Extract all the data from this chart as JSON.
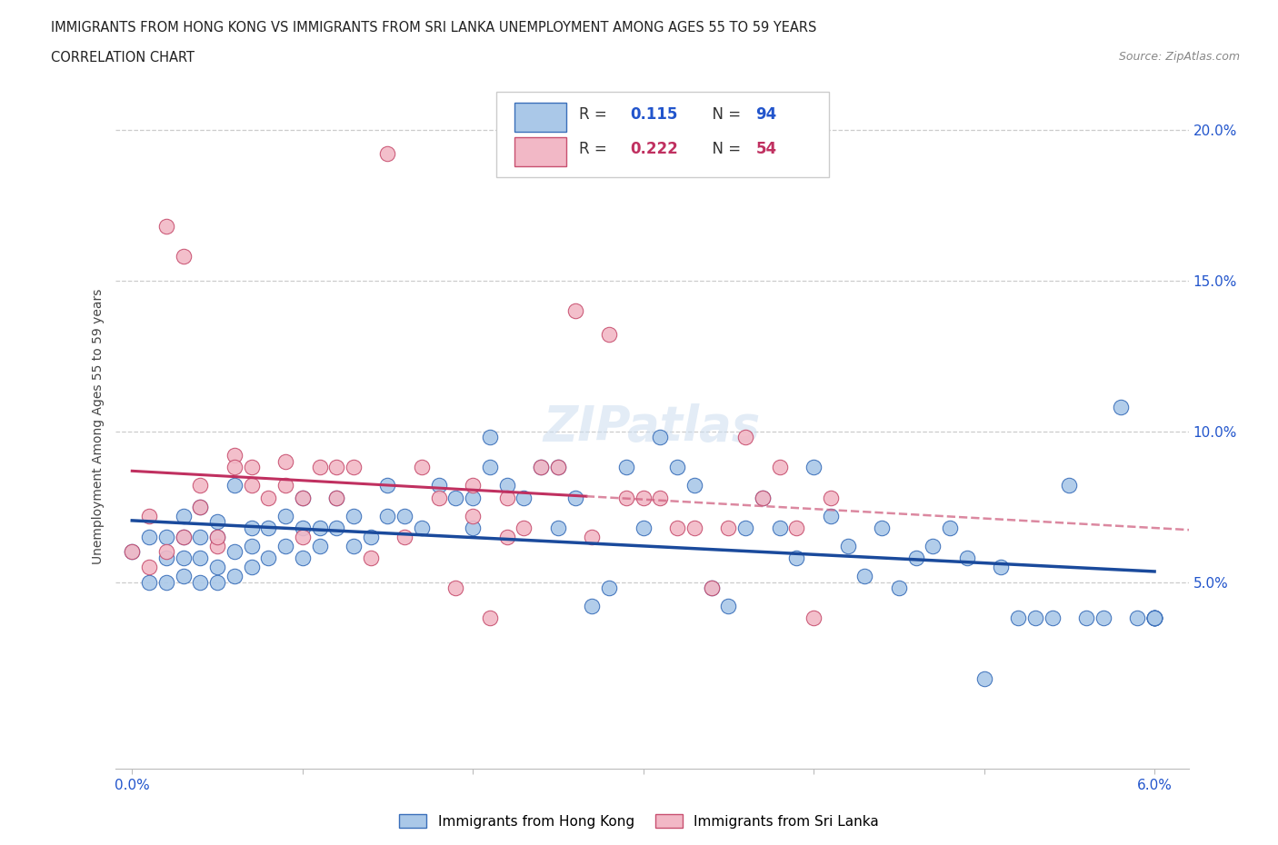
{
  "title_line1": "IMMIGRANTS FROM HONG KONG VS IMMIGRANTS FROM SRI LANKA UNEMPLOYMENT AMONG AGES 55 TO 59 YEARS",
  "title_line2": "CORRELATION CHART",
  "source_text": "Source: ZipAtlas.com",
  "ylabel_label": "Unemployment Among Ages 55 to 59 years",
  "xlim": [
    0.0,
    0.062
  ],
  "ylim": [
    -0.012,
    0.215
  ],
  "hk_R": 0.115,
  "hk_N": 94,
  "sl_R": 0.222,
  "sl_N": 54,
  "hk_color": "#aac8e8",
  "hk_edge_color": "#3a6fba",
  "hk_line_color": "#1a4a9c",
  "sl_color": "#f2b8c6",
  "sl_edge_color": "#c85070",
  "sl_line_color": "#c03060",
  "sl_dash_color": "#d06080",
  "grid_color": "#cccccc",
  "tick_color": "#2255cc",
  "title_color": "#222222",
  "hk_scatter_x": [
    0.0,
    0.001,
    0.001,
    0.002,
    0.002,
    0.002,
    0.003,
    0.003,
    0.003,
    0.003,
    0.004,
    0.004,
    0.004,
    0.004,
    0.005,
    0.005,
    0.005,
    0.005,
    0.006,
    0.006,
    0.006,
    0.007,
    0.007,
    0.007,
    0.008,
    0.008,
    0.009,
    0.009,
    0.01,
    0.01,
    0.01,
    0.011,
    0.011,
    0.012,
    0.012,
    0.013,
    0.013,
    0.014,
    0.015,
    0.015,
    0.016,
    0.017,
    0.018,
    0.019,
    0.02,
    0.02,
    0.021,
    0.021,
    0.022,
    0.023,
    0.024,
    0.025,
    0.025,
    0.026,
    0.027,
    0.028,
    0.029,
    0.03,
    0.031,
    0.032,
    0.033,
    0.034,
    0.035,
    0.036,
    0.037,
    0.038,
    0.039,
    0.04,
    0.041,
    0.042,
    0.043,
    0.044,
    0.045,
    0.046,
    0.047,
    0.048,
    0.049,
    0.05,
    0.051,
    0.052,
    0.053,
    0.054,
    0.055,
    0.056,
    0.057,
    0.058,
    0.059,
    0.06,
    0.06,
    0.06,
    0.06,
    0.06,
    0.06,
    0.06
  ],
  "hk_scatter_y": [
    0.06,
    0.05,
    0.065,
    0.05,
    0.058,
    0.065,
    0.052,
    0.058,
    0.065,
    0.072,
    0.05,
    0.058,
    0.065,
    0.075,
    0.05,
    0.055,
    0.065,
    0.07,
    0.052,
    0.06,
    0.082,
    0.055,
    0.062,
    0.068,
    0.058,
    0.068,
    0.062,
    0.072,
    0.058,
    0.068,
    0.078,
    0.062,
    0.068,
    0.068,
    0.078,
    0.062,
    0.072,
    0.065,
    0.072,
    0.082,
    0.072,
    0.068,
    0.082,
    0.078,
    0.068,
    0.078,
    0.088,
    0.098,
    0.082,
    0.078,
    0.088,
    0.088,
    0.068,
    0.078,
    0.042,
    0.048,
    0.088,
    0.068,
    0.098,
    0.088,
    0.082,
    0.048,
    0.042,
    0.068,
    0.078,
    0.068,
    0.058,
    0.088,
    0.072,
    0.062,
    0.052,
    0.068,
    0.048,
    0.058,
    0.062,
    0.068,
    0.058,
    0.018,
    0.055,
    0.038,
    0.038,
    0.038,
    0.082,
    0.038,
    0.038,
    0.108,
    0.038,
    0.038,
    0.038,
    0.038,
    0.038,
    0.038,
    0.038,
    0.038
  ],
  "sl_scatter_x": [
    0.0,
    0.001,
    0.001,
    0.002,
    0.002,
    0.003,
    0.003,
    0.004,
    0.004,
    0.005,
    0.005,
    0.006,
    0.006,
    0.007,
    0.007,
    0.008,
    0.009,
    0.009,
    0.01,
    0.01,
    0.011,
    0.012,
    0.012,
    0.013,
    0.014,
    0.015,
    0.016,
    0.017,
    0.018,
    0.019,
    0.02,
    0.02,
    0.021,
    0.022,
    0.022,
    0.023,
    0.024,
    0.025,
    0.026,
    0.027,
    0.028,
    0.029,
    0.03,
    0.031,
    0.032,
    0.033,
    0.034,
    0.035,
    0.036,
    0.037,
    0.038,
    0.039,
    0.04,
    0.041
  ],
  "sl_scatter_y": [
    0.06,
    0.055,
    0.072,
    0.06,
    0.168,
    0.158,
    0.065,
    0.075,
    0.082,
    0.062,
    0.065,
    0.092,
    0.088,
    0.088,
    0.082,
    0.078,
    0.082,
    0.09,
    0.065,
    0.078,
    0.088,
    0.078,
    0.088,
    0.088,
    0.058,
    0.192,
    0.065,
    0.088,
    0.078,
    0.048,
    0.072,
    0.082,
    0.038,
    0.065,
    0.078,
    0.068,
    0.088,
    0.088,
    0.14,
    0.065,
    0.132,
    0.078,
    0.078,
    0.078,
    0.068,
    0.068,
    0.048,
    0.068,
    0.098,
    0.078,
    0.088,
    0.068,
    0.038,
    0.078
  ]
}
